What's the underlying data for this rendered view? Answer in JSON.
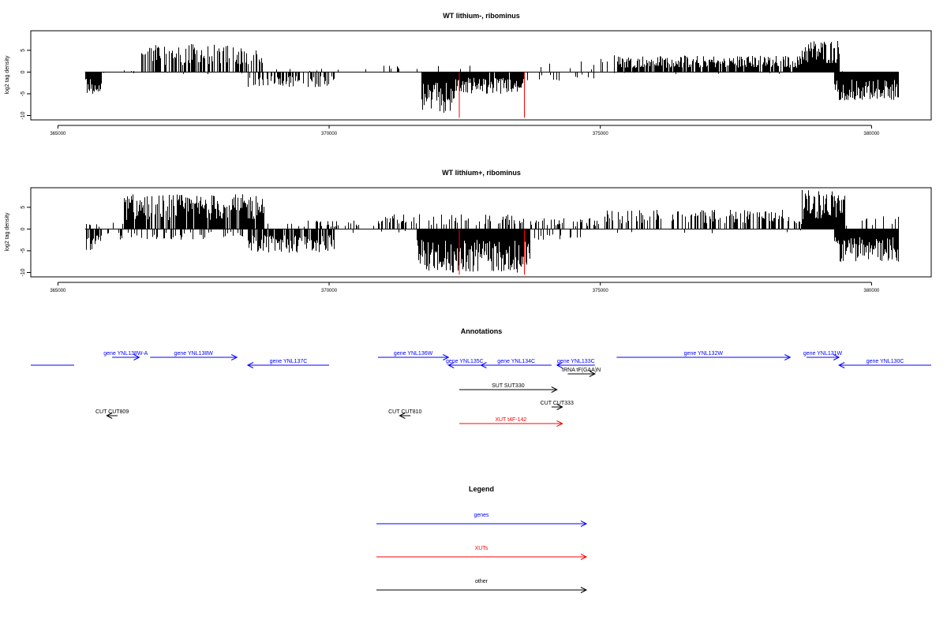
{
  "colors": {
    "gene": "#0000ff",
    "xut": "#ff0000",
    "other": "#000000",
    "track_marker": "#ff0000"
  },
  "chart_data": [
    {
      "type": "bar",
      "title": "WT lithium-, ribominus",
      "ylabel": "log2 tag density",
      "xlim": [
        364500,
        381100
      ],
      "ylim": [
        -11,
        9.5
      ],
      "xticks": [
        365000,
        370000,
        375000,
        380000
      ],
      "yticks": [
        -10,
        -5,
        0,
        5
      ],
      "data_range": [
        365500,
        380500
      ],
      "marker_lines": [
        372400,
        373600
      ],
      "plus_regions": [
        {
          "x": [
            365500,
            366500
          ],
          "max": 0.5,
          "density": 0.1
        },
        {
          "x": [
            366500,
            368800
          ],
          "max": 6.5,
          "density": 0.6
        },
        {
          "x": [
            368800,
            371000
          ],
          "max": 0.8,
          "density": 0.05
        },
        {
          "x": [
            371000,
            372700
          ],
          "max": 1.5,
          "density": 0.05
        },
        {
          "x": [
            373500,
            375000
          ],
          "max": 2.5,
          "density": 0.08
        },
        {
          "x": [
            375000,
            375300
          ],
          "max": 5.5,
          "density": 0.2
        },
        {
          "x": [
            375300,
            378700
          ],
          "max": 3.8,
          "density": 0.85
        },
        {
          "x": [
            378700,
            379400
          ],
          "max": 7.5,
          "density": 1.0
        },
        {
          "x": [
            379400,
            380500
          ],
          "max": 0.5,
          "density": 0.03
        }
      ],
      "minus_regions": [
        {
          "x": [
            365500,
            365800
          ],
          "max": 5,
          "density": 0.9
        },
        {
          "x": [
            365800,
            368500
          ],
          "max": 0.5,
          "density": 0.02
        },
        {
          "x": [
            368500,
            370100
          ],
          "max": 3.5,
          "density": 0.5
        },
        {
          "x": [
            371700,
            372300
          ],
          "max": 9.5,
          "density": 1.0
        },
        {
          "x": [
            372300,
            373600
          ],
          "max": 5,
          "density": 0.9
        },
        {
          "x": [
            373600,
            375000
          ],
          "max": 2,
          "density": 0.1
        },
        {
          "x": [
            375000,
            379300
          ],
          "max": 0.5,
          "density": 0.02
        },
        {
          "x": [
            379300,
            380500
          ],
          "max": 6.5,
          "density": 1.0
        }
      ]
    },
    {
      "type": "bar",
      "title": "WT lithium+, ribominus",
      "ylabel": "log2 tag density",
      "xlim": [
        364500,
        381100
      ],
      "ylim": [
        -11,
        9.5
      ],
      "xticks": [
        365000,
        370000,
        375000,
        380000
      ],
      "yticks": [
        -10,
        -5,
        0,
        5
      ],
      "data_range": [
        365500,
        380500
      ],
      "marker_lines": [
        372400,
        373600
      ],
      "plus_regions": [
        {
          "x": [
            365500,
            366200
          ],
          "max": 1.5,
          "density": 0.2
        },
        {
          "x": [
            366200,
            368800
          ],
          "max": 8,
          "density": 0.85
        },
        {
          "x": [
            368800,
            371000
          ],
          "max": 2,
          "density": 0.2
        },
        {
          "x": [
            371000,
            373700
          ],
          "max": 3.5,
          "density": 0.3
        },
        {
          "x": [
            373700,
            375000
          ],
          "max": 2.5,
          "density": 0.3
        },
        {
          "x": [
            375000,
            378700
          ],
          "max": 4.5,
          "density": 0.4
        },
        {
          "x": [
            378700,
            379500
          ],
          "max": 9,
          "density": 1.0
        },
        {
          "x": [
            379500,
            380500
          ],
          "max": 3,
          "density": 0.15
        }
      ],
      "minus_regions": [
        {
          "x": [
            365500,
            365800
          ],
          "max": 5.5,
          "density": 0.9
        },
        {
          "x": [
            365800,
            368500
          ],
          "max": 2.5,
          "density": 0.2
        },
        {
          "x": [
            368500,
            370100
          ],
          "max": 5.5,
          "density": 0.8
        },
        {
          "x": [
            370100,
            371600
          ],
          "max": 1,
          "density": 0.05
        },
        {
          "x": [
            371600,
            373700
          ],
          "max": 10,
          "density": 1.0
        },
        {
          "x": [
            373700,
            374700
          ],
          "max": 3,
          "density": 0.2
        },
        {
          "x": [
            374700,
            379300
          ],
          "max": 1,
          "density": 0.02
        },
        {
          "x": [
            379300,
            380500
          ],
          "max": 7.5,
          "density": 1.0
        }
      ]
    }
  ],
  "annotations": {
    "title": "Annotations",
    "features": [
      {
        "label": "",
        "cls": "gene",
        "start": 364500,
        "end": 365300,
        "strand": "none",
        "lane": 1
      },
      {
        "label": "gene YNL138W-A",
        "cls": "gene",
        "start": 366000,
        "end": 366500,
        "strand": "+",
        "lane": 0
      },
      {
        "label": "gene YNL138W",
        "cls": "gene",
        "start": 366700,
        "end": 368300,
        "strand": "+",
        "lane": 0
      },
      {
        "label": "gene YNL137C",
        "cls": "gene",
        "start": 368500,
        "end": 370000,
        "strand": "-",
        "lane": 1
      },
      {
        "label": "gene YNL136W",
        "cls": "gene",
        "start": 370900,
        "end": 372200,
        "strand": "+",
        "lane": 0
      },
      {
        "label": "gene YNL135C",
        "cls": "gene",
        "start": 372200,
        "end": 372800,
        "strand": "-",
        "lane": 1
      },
      {
        "label": "gene YNL134C",
        "cls": "gene",
        "start": 372800,
        "end": 374100,
        "strand": "-",
        "lane": 1
      },
      {
        "label": "gene YNL133C",
        "cls": "gene",
        "start": 374200,
        "end": 374900,
        "strand": "-",
        "lane": 1
      },
      {
        "label": "tRNA tF(GAA)N",
        "cls": "other",
        "start": 374400,
        "end": 374900,
        "strand": "+",
        "lane": 2
      },
      {
        "label": "gene YNL132W",
        "cls": "gene",
        "start": 375300,
        "end": 378500,
        "strand": "+",
        "lane": 0
      },
      {
        "label": "gene YNL131W",
        "cls": "gene",
        "start": 378800,
        "end": 379400,
        "strand": "+",
        "lane": 0
      },
      {
        "label": "gene YNL130C",
        "cls": "gene",
        "start": 379400,
        "end": 381100,
        "strand": "-",
        "lane": 1
      },
      {
        "label": "SUT SUT330",
        "cls": "other",
        "start": 372400,
        "end": 374200,
        "strand": "+",
        "lane": 3
      },
      {
        "label": "CUT CUT333",
        "cls": "other",
        "start": 374100,
        "end": 374300,
        "strand": "+",
        "lane": 4
      },
      {
        "label": "CUT CUT809",
        "cls": "other",
        "start": 365900,
        "end": 366100,
        "strand": "-",
        "lane": 5
      },
      {
        "label": "CUT CUT810",
        "cls": "other",
        "start": 371300,
        "end": 371500,
        "strand": "-",
        "lane": 5
      },
      {
        "label": "XUT t4F-142",
        "cls": "xut",
        "start": 372400,
        "end": 374300,
        "strand": "+",
        "lane": 6
      }
    ]
  },
  "legend": {
    "title": "Legend",
    "items": [
      {
        "label": "genes",
        "cls": "gene"
      },
      {
        "label": "XUTs",
        "cls": "xut"
      },
      {
        "label": "other",
        "cls": "other"
      }
    ]
  }
}
